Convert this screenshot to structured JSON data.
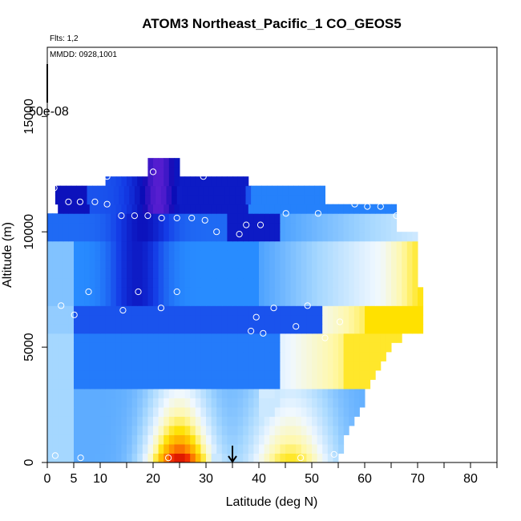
{
  "chart_data": {
    "type": "heatmap",
    "title": "ATOM3 Northeast_Pacific_1 CO_GEOS5",
    "subtitle_flights": "Flts: 1,2",
    "subtitle_dates": "MMDD: 0928,1001",
    "xlabel": "Latitude (deg N)",
    "ylabel": "Altitude (m)",
    "xlim": [
      0,
      85
    ],
    "ylim": [
      0,
      18000
    ],
    "x_ticks": [
      0,
      5,
      10,
      20,
      30,
      40,
      50,
      60,
      70,
      80
    ],
    "x_tick_labels": [
      "0",
      "5",
      "10",
      "20",
      "30",
      "40",
      "50",
      "60",
      "70",
      "80"
    ],
    "x_minor_ticks": [
      15,
      25,
      35,
      45,
      55,
      65,
      75,
      85
    ],
    "y_ticks": [
      0,
      5000,
      10000,
      15000
    ],
    "y_tick_labels": [
      "0",
      "5000",
      "10000",
      "15000"
    ],
    "colorbar_fragment_label": "50e-08",
    "marker_arrow_latitude": 35,
    "colors": {
      "dark_red": "#c00000",
      "red": "#e02000",
      "orange": "#ff8c00",
      "yellow": "#ffe000",
      "pale_yellow": "#fff4a0",
      "white_blue": "#e8f4ff",
      "light_blue": "#a8d4ff",
      "sky_blue": "#2a9cff",
      "medium_blue": "#1e64e6",
      "dark_blue": "#0a14c8",
      "purple": "#8a2be2"
    },
    "sample_points": [
      {
        "lat": 1.3,
        "alt": 11900
      },
      {
        "lat": 4,
        "alt": 11300
      },
      {
        "lat": 6.2,
        "alt": 11300
      },
      {
        "lat": 9,
        "alt": 11300
      },
      {
        "lat": 11.3,
        "alt": 11200
      },
      {
        "lat": 11.3,
        "alt": 12400
      },
      {
        "lat": 20,
        "alt": 12600
      },
      {
        "lat": 26.6,
        "alt": 12800
      },
      {
        "lat": 29.5,
        "alt": 12400
      },
      {
        "lat": 14,
        "alt": 10700
      },
      {
        "lat": 16.5,
        "alt": 10700
      },
      {
        "lat": 19,
        "alt": 10700
      },
      {
        "lat": 21.6,
        "alt": 10600
      },
      {
        "lat": 24.5,
        "alt": 10600
      },
      {
        "lat": 27.3,
        "alt": 10600
      },
      {
        "lat": 29.8,
        "alt": 10500
      },
      {
        "lat": 32,
        "alt": 10000
      },
      {
        "lat": 36.3,
        "alt": 9900
      },
      {
        "lat": 37.6,
        "alt": 10300
      },
      {
        "lat": 40.3,
        "alt": 10300
      },
      {
        "lat": 45.1,
        "alt": 10800
      },
      {
        "lat": 51.2,
        "alt": 10800
      },
      {
        "lat": 58.1,
        "alt": 11200
      },
      {
        "lat": 60.5,
        "alt": 11100
      },
      {
        "lat": 63,
        "alt": 11100
      },
      {
        "lat": 66,
        "alt": 10700
      },
      {
        "lat": 7.8,
        "alt": 7400
      },
      {
        "lat": 17.2,
        "alt": 7400
      },
      {
        "lat": 24.5,
        "alt": 7400
      },
      {
        "lat": 2.6,
        "alt": 6800
      },
      {
        "lat": 5.1,
        "alt": 6400
      },
      {
        "lat": 14.3,
        "alt": 6600
      },
      {
        "lat": 21.5,
        "alt": 6700
      },
      {
        "lat": 42.8,
        "alt": 6700
      },
      {
        "lat": 49.2,
        "alt": 6800
      },
      {
        "lat": 39.5,
        "alt": 6300
      },
      {
        "lat": 47,
        "alt": 5900
      },
      {
        "lat": 38.5,
        "alt": 5700
      },
      {
        "lat": 40.8,
        "alt": 5600
      },
      {
        "lat": 52.5,
        "alt": 5400
      },
      {
        "lat": 55.3,
        "alt": 6100
      },
      {
        "lat": 1.5,
        "alt": 300
      },
      {
        "lat": 6.3,
        "alt": 200
      },
      {
        "lat": 22.9,
        "alt": 200
      },
      {
        "lat": 47.9,
        "alt": 200
      },
      {
        "lat": 54.2,
        "alt": 350
      }
    ]
  }
}
